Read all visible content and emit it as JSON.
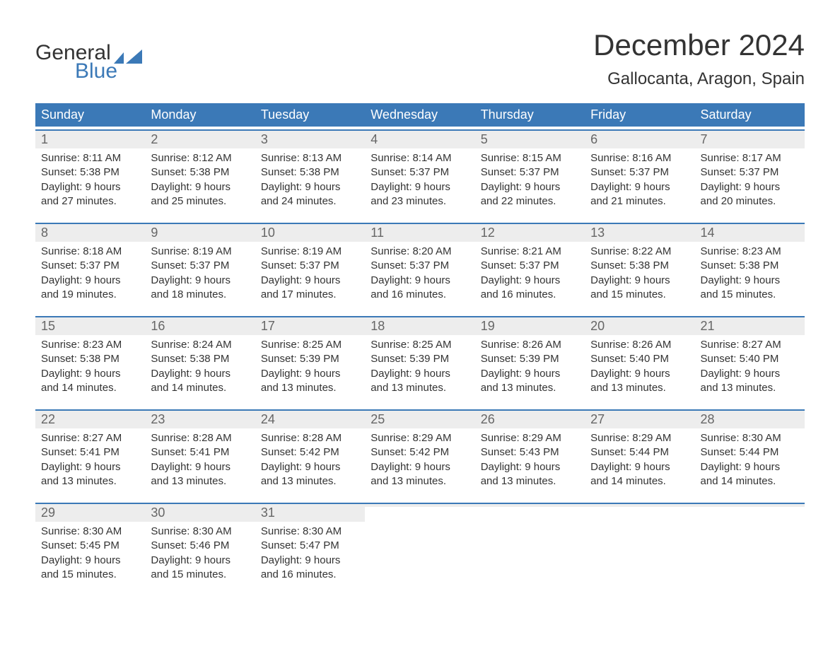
{
  "logo": {
    "text1": "General",
    "text2": "Blue",
    "brand_color": "#3b79b7"
  },
  "title": "December 2024",
  "location": "Gallocanta, Aragon, Spain",
  "colors": {
    "header_bg": "#3b79b7",
    "header_text": "#ffffff",
    "daynum_bg": "#ededed",
    "daynum_text": "#666666",
    "body_text": "#333333",
    "week_border": "#3b79b7",
    "page_bg": "#ffffff"
  },
  "fonts": {
    "title_size_pt": 32,
    "location_size_pt": 18,
    "dow_size_pt": 14,
    "daynum_size_pt": 14,
    "body_size_pt": 11
  },
  "days_of_week": [
    "Sunday",
    "Monday",
    "Tuesday",
    "Wednesday",
    "Thursday",
    "Friday",
    "Saturday"
  ],
  "weeks": [
    [
      {
        "n": "1",
        "sunrise": "Sunrise: 8:11 AM",
        "sunset": "Sunset: 5:38 PM",
        "d1": "Daylight: 9 hours",
        "d2": "and 27 minutes."
      },
      {
        "n": "2",
        "sunrise": "Sunrise: 8:12 AM",
        "sunset": "Sunset: 5:38 PM",
        "d1": "Daylight: 9 hours",
        "d2": "and 25 minutes."
      },
      {
        "n": "3",
        "sunrise": "Sunrise: 8:13 AM",
        "sunset": "Sunset: 5:38 PM",
        "d1": "Daylight: 9 hours",
        "d2": "and 24 minutes."
      },
      {
        "n": "4",
        "sunrise": "Sunrise: 8:14 AM",
        "sunset": "Sunset: 5:37 PM",
        "d1": "Daylight: 9 hours",
        "d2": "and 23 minutes."
      },
      {
        "n": "5",
        "sunrise": "Sunrise: 8:15 AM",
        "sunset": "Sunset: 5:37 PM",
        "d1": "Daylight: 9 hours",
        "d2": "and 22 minutes."
      },
      {
        "n": "6",
        "sunrise": "Sunrise: 8:16 AM",
        "sunset": "Sunset: 5:37 PM",
        "d1": "Daylight: 9 hours",
        "d2": "and 21 minutes."
      },
      {
        "n": "7",
        "sunrise": "Sunrise: 8:17 AM",
        "sunset": "Sunset: 5:37 PM",
        "d1": "Daylight: 9 hours",
        "d2": "and 20 minutes."
      }
    ],
    [
      {
        "n": "8",
        "sunrise": "Sunrise: 8:18 AM",
        "sunset": "Sunset: 5:37 PM",
        "d1": "Daylight: 9 hours",
        "d2": "and 19 minutes."
      },
      {
        "n": "9",
        "sunrise": "Sunrise: 8:19 AM",
        "sunset": "Sunset: 5:37 PM",
        "d1": "Daylight: 9 hours",
        "d2": "and 18 minutes."
      },
      {
        "n": "10",
        "sunrise": "Sunrise: 8:19 AM",
        "sunset": "Sunset: 5:37 PM",
        "d1": "Daylight: 9 hours",
        "d2": "and 17 minutes."
      },
      {
        "n": "11",
        "sunrise": "Sunrise: 8:20 AM",
        "sunset": "Sunset: 5:37 PM",
        "d1": "Daylight: 9 hours",
        "d2": "and 16 minutes."
      },
      {
        "n": "12",
        "sunrise": "Sunrise: 8:21 AM",
        "sunset": "Sunset: 5:37 PM",
        "d1": "Daylight: 9 hours",
        "d2": "and 16 minutes."
      },
      {
        "n": "13",
        "sunrise": "Sunrise: 8:22 AM",
        "sunset": "Sunset: 5:38 PM",
        "d1": "Daylight: 9 hours",
        "d2": "and 15 minutes."
      },
      {
        "n": "14",
        "sunrise": "Sunrise: 8:23 AM",
        "sunset": "Sunset: 5:38 PM",
        "d1": "Daylight: 9 hours",
        "d2": "and 15 minutes."
      }
    ],
    [
      {
        "n": "15",
        "sunrise": "Sunrise: 8:23 AM",
        "sunset": "Sunset: 5:38 PM",
        "d1": "Daylight: 9 hours",
        "d2": "and 14 minutes."
      },
      {
        "n": "16",
        "sunrise": "Sunrise: 8:24 AM",
        "sunset": "Sunset: 5:38 PM",
        "d1": "Daylight: 9 hours",
        "d2": "and 14 minutes."
      },
      {
        "n": "17",
        "sunrise": "Sunrise: 8:25 AM",
        "sunset": "Sunset: 5:39 PM",
        "d1": "Daylight: 9 hours",
        "d2": "and 13 minutes."
      },
      {
        "n": "18",
        "sunrise": "Sunrise: 8:25 AM",
        "sunset": "Sunset: 5:39 PM",
        "d1": "Daylight: 9 hours",
        "d2": "and 13 minutes."
      },
      {
        "n": "19",
        "sunrise": "Sunrise: 8:26 AM",
        "sunset": "Sunset: 5:39 PM",
        "d1": "Daylight: 9 hours",
        "d2": "and 13 minutes."
      },
      {
        "n": "20",
        "sunrise": "Sunrise: 8:26 AM",
        "sunset": "Sunset: 5:40 PM",
        "d1": "Daylight: 9 hours",
        "d2": "and 13 minutes."
      },
      {
        "n": "21",
        "sunrise": "Sunrise: 8:27 AM",
        "sunset": "Sunset: 5:40 PM",
        "d1": "Daylight: 9 hours",
        "d2": "and 13 minutes."
      }
    ],
    [
      {
        "n": "22",
        "sunrise": "Sunrise: 8:27 AM",
        "sunset": "Sunset: 5:41 PM",
        "d1": "Daylight: 9 hours",
        "d2": "and 13 minutes."
      },
      {
        "n": "23",
        "sunrise": "Sunrise: 8:28 AM",
        "sunset": "Sunset: 5:41 PM",
        "d1": "Daylight: 9 hours",
        "d2": "and 13 minutes."
      },
      {
        "n": "24",
        "sunrise": "Sunrise: 8:28 AM",
        "sunset": "Sunset: 5:42 PM",
        "d1": "Daylight: 9 hours",
        "d2": "and 13 minutes."
      },
      {
        "n": "25",
        "sunrise": "Sunrise: 8:29 AM",
        "sunset": "Sunset: 5:42 PM",
        "d1": "Daylight: 9 hours",
        "d2": "and 13 minutes."
      },
      {
        "n": "26",
        "sunrise": "Sunrise: 8:29 AM",
        "sunset": "Sunset: 5:43 PM",
        "d1": "Daylight: 9 hours",
        "d2": "and 13 minutes."
      },
      {
        "n": "27",
        "sunrise": "Sunrise: 8:29 AM",
        "sunset": "Sunset: 5:44 PM",
        "d1": "Daylight: 9 hours",
        "d2": "and 14 minutes."
      },
      {
        "n": "28",
        "sunrise": "Sunrise: 8:30 AM",
        "sunset": "Sunset: 5:44 PM",
        "d1": "Daylight: 9 hours",
        "d2": "and 14 minutes."
      }
    ],
    [
      {
        "n": "29",
        "sunrise": "Sunrise: 8:30 AM",
        "sunset": "Sunset: 5:45 PM",
        "d1": "Daylight: 9 hours",
        "d2": "and 15 minutes."
      },
      {
        "n": "30",
        "sunrise": "Sunrise: 8:30 AM",
        "sunset": "Sunset: 5:46 PM",
        "d1": "Daylight: 9 hours",
        "d2": "and 15 minutes."
      },
      {
        "n": "31",
        "sunrise": "Sunrise: 8:30 AM",
        "sunset": "Sunset: 5:47 PM",
        "d1": "Daylight: 9 hours",
        "d2": "and 16 minutes."
      },
      {
        "empty": true
      },
      {
        "empty": true
      },
      {
        "empty": true
      },
      {
        "empty": true
      }
    ]
  ]
}
